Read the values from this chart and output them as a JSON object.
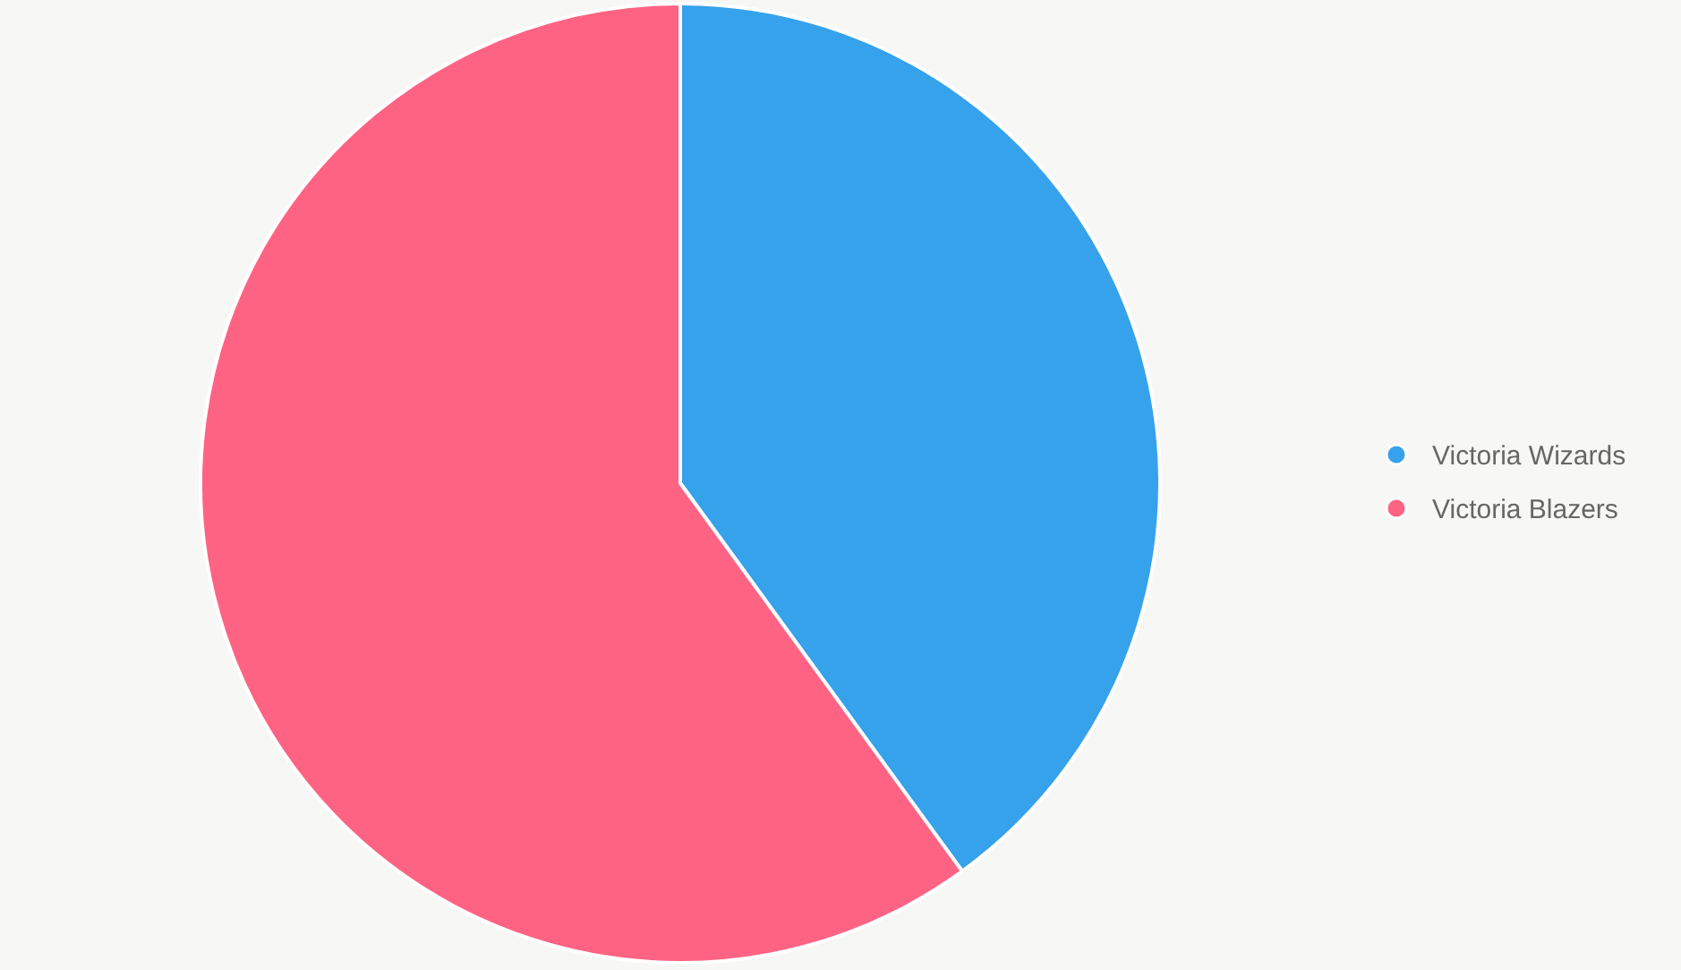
{
  "chart_data": {
    "type": "pie",
    "categories": [
      "Victoria Wizards",
      "Victoria Blazers"
    ],
    "values": [
      40,
      60
    ],
    "colors": [
      "#36a2eb",
      "#ff6384"
    ],
    "legend": "right"
  }
}
